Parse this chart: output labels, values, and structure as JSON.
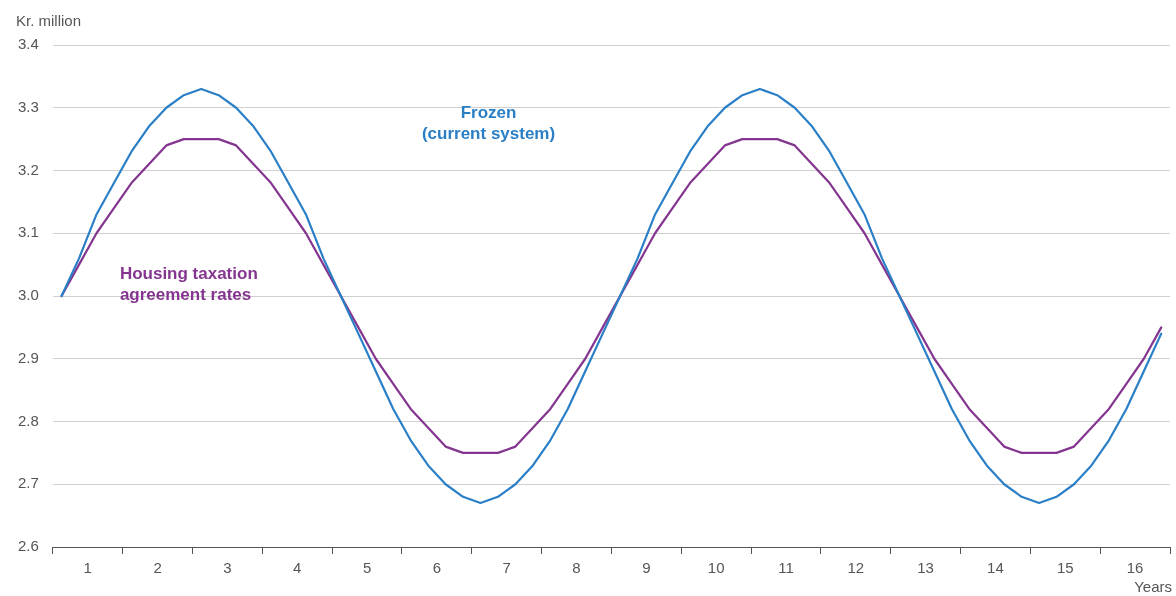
{
  "chart_data": {
    "type": "line",
    "ylabel": "Kr. million",
    "xlabel": "Years",
    "x": [
      0.125,
      0.375,
      0.625,
      0.875,
      1.125,
      1.375,
      1.625,
      1.875,
      2.125,
      2.375,
      2.625,
      2.875,
      3.125,
      3.375,
      3.625,
      3.875,
      4.125,
      4.375,
      4.625,
      4.875,
      5.125,
      5.375,
      5.625,
      5.875,
      6.125,
      6.375,
      6.625,
      6.875,
      7.125,
      7.375,
      7.625,
      7.875,
      8.125,
      8.375,
      8.625,
      8.875,
      9.125,
      9.375,
      9.625,
      9.875,
      10.125,
      10.375,
      10.625,
      10.875,
      11.125,
      11.375,
      11.625,
      11.875,
      12.125,
      12.375,
      12.625,
      12.875,
      13.125,
      13.375,
      13.625,
      13.875,
      14.125,
      14.375,
      14.625,
      14.875,
      15.125,
      15.375,
      15.625,
      15.875
    ],
    "series": [
      {
        "name": "Frozen\n(current system)",
        "color": "#2a7fc6",
        "values": [
          3.0,
          3.06,
          3.13,
          3.18,
          3.23,
          3.27,
          3.3,
          3.32,
          3.33,
          3.32,
          3.3,
          3.27,
          3.23,
          3.18,
          3.13,
          3.06,
          3.0,
          2.94,
          2.88,
          2.82,
          2.77,
          2.73,
          2.7,
          2.68,
          2.67,
          2.68,
          2.7,
          2.73,
          2.77,
          2.82,
          2.88,
          2.94,
          3.0,
          3.06,
          3.13,
          3.18,
          3.23,
          3.27,
          3.3,
          3.32,
          3.33,
          3.32,
          3.3,
          3.27,
          3.23,
          3.18,
          3.13,
          3.06,
          3.0,
          2.94,
          2.88,
          2.82,
          2.77,
          2.73,
          2.7,
          2.68,
          2.67,
          2.68,
          2.7,
          2.73,
          2.77,
          2.82,
          2.88,
          2.94
        ]
      },
      {
        "name": "Housing taxation\nagreement rates",
        "color": "#84358f",
        "values": [
          3.0,
          3.05,
          3.1,
          3.14,
          3.18,
          3.21,
          3.24,
          3.25,
          3.25,
          3.25,
          3.24,
          3.21,
          3.18,
          3.14,
          3.1,
          3.05,
          3.0,
          2.95,
          2.9,
          2.86,
          2.82,
          2.79,
          2.76,
          2.75,
          2.75,
          2.75,
          2.76,
          2.79,
          2.82,
          2.86,
          2.9,
          2.95,
          3.0,
          3.05,
          3.1,
          3.14,
          3.18,
          3.21,
          3.24,
          3.25,
          3.25,
          3.25,
          3.24,
          3.21,
          3.18,
          3.14,
          3.1,
          3.05,
          3.0,
          2.95,
          2.9,
          2.86,
          2.82,
          2.79,
          2.76,
          2.75,
          2.75,
          2.75,
          2.76,
          2.79,
          2.82,
          2.86,
          2.9,
          2.95
        ]
      }
    ],
    "xlim": [
      0,
      16
    ],
    "xticks": [
      {
        "value": 0,
        "label": null
      },
      {
        "value": 0.5,
        "label": "1"
      },
      {
        "value": 1,
        "label": null
      },
      {
        "value": 1.5,
        "label": "2"
      },
      {
        "value": 2,
        "label": null
      },
      {
        "value": 2.5,
        "label": "3"
      },
      {
        "value": 3,
        "label": null
      },
      {
        "value": 3.5,
        "label": "4"
      },
      {
        "value": 4,
        "label": null
      },
      {
        "value": 4.5,
        "label": "5"
      },
      {
        "value": 5,
        "label": null
      },
      {
        "value": 5.5,
        "label": "6"
      },
      {
        "value": 6,
        "label": null
      },
      {
        "value": 6.5,
        "label": "7"
      },
      {
        "value": 7,
        "label": null
      },
      {
        "value": 7.5,
        "label": "8"
      },
      {
        "value": 8,
        "label": null
      },
      {
        "value": 8.5,
        "label": "9"
      },
      {
        "value": 9,
        "label": null
      },
      {
        "value": 9.5,
        "label": "10"
      },
      {
        "value": 10,
        "label": null
      },
      {
        "value": 10.5,
        "label": "11"
      },
      {
        "value": 11,
        "label": null
      },
      {
        "value": 11.5,
        "label": "12"
      },
      {
        "value": 12,
        "label": null
      },
      {
        "value": 12.5,
        "label": "13"
      },
      {
        "value": 13,
        "label": null
      },
      {
        "value": 13.5,
        "label": "14"
      },
      {
        "value": 14,
        "label": null
      },
      {
        "value": 14.5,
        "label": "15"
      },
      {
        "value": 15,
        "label": null
      },
      {
        "value": 15.5,
        "label": "16"
      },
      {
        "value": 16,
        "label": null
      }
    ],
    "ylim": [
      2.6,
      3.4
    ],
    "yticks": [
      2.6,
      2.7,
      2.8,
      2.9,
      {
        "value": 3,
        "label": "3.0"
      },
      3.1,
      3.2,
      3.3,
      3.4
    ],
    "grid": "y",
    "legend": false,
    "marker": "none",
    "line_style": "solid"
  }
}
